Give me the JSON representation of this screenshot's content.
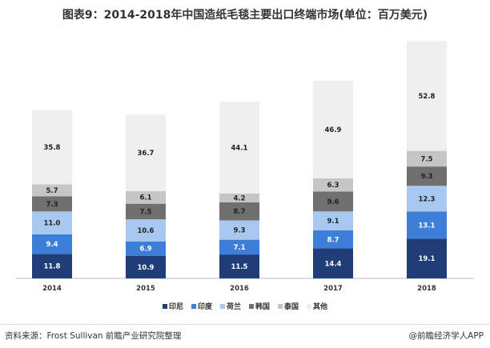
{
  "chart_data": {
    "type": "bar",
    "stacked": true,
    "title": "图表9：2014-2018年中国造纸毛毯主要出口终端市场(单位：百万美元)",
    "categories": [
      "2014",
      "2015",
      "2016",
      "2017",
      "2018"
    ],
    "series": [
      {
        "name": "印尼",
        "color": "#1f3e78",
        "values": [
          11.8,
          10.9,
          11.5,
          14.4,
          19.1
        ]
      },
      {
        "name": "印度",
        "color": "#3d7fd8",
        "values": [
          9.4,
          6.9,
          7.1,
          8.7,
          13.1
        ]
      },
      {
        "name": "荷兰",
        "color": "#a8c8ef",
        "values": [
          11.0,
          10.6,
          9.3,
          9.1,
          12.3
        ]
      },
      {
        "name": "韩国",
        "color": "#6f6f6f",
        "values": [
          7.3,
          7.5,
          8.7,
          9.6,
          9.3
        ]
      },
      {
        "name": "泰国",
        "color": "#c6c6c6",
        "values": [
          5.7,
          6.1,
          4.2,
          6.3,
          7.5
        ]
      },
      {
        "name": "其他",
        "color": "#efefef",
        "values": [
          35.8,
          36.7,
          44.1,
          46.9,
          52.8
        ]
      }
    ],
    "legend": "bottom",
    "grid": false
  },
  "footer": {
    "source": "资料来源：Frost Sullivan 前瞻产业研究院整理",
    "credit": "@前瞻经济学人APP"
  }
}
